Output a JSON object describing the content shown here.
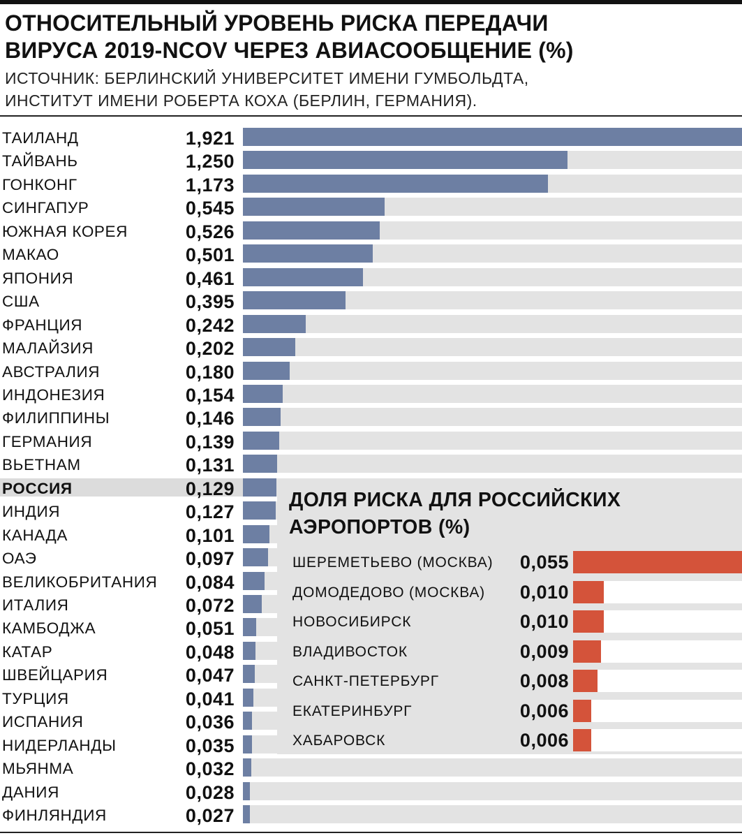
{
  "title": {
    "line1": "ОТНОСИТЕЛЬНЫЙ УРОВЕНЬ РИСКА ПЕРЕДАЧИ",
    "line2": "ВИРУСА 2019-NCOV ЧЕРЕЗ АВИАСООБЩЕНИЕ (%)"
  },
  "source": {
    "line1": "ИСТОЧНИК: БЕРЛИНСКИЙ УНИВЕРСИТЕТ ИМЕНИ ГУМБОЛЬДТА,",
    "line2": "ИНСТИТУТ ИМЕНИ РОБЕРТА КОХА (БЕРЛИН, ГЕРМАНИЯ)."
  },
  "colors": {
    "main_bar": "#6d7fa3",
    "inset_bar": "#d4533a",
    "track": "#e3e3e3",
    "highlight": "#dcdcdc"
  },
  "chart_data": [
    {
      "type": "bar",
      "orientation": "horizontal",
      "title": "ОТНОСИТЕЛЬНЫЙ УРОВЕНЬ РИСКА ПЕРЕДАЧИ ВИРУСА 2019-NCOV ЧЕРЕЗ АВИАСООБЩЕНИЕ (%)",
      "categories": [
        "ТАИЛАНД",
        "ТАЙВАНЬ",
        "ГОНКОНГ",
        "СИНГАПУР",
        "ЮЖНАЯ КОРЕЯ",
        "МАКАО",
        "ЯПОНИЯ",
        "США",
        "ФРАНЦИЯ",
        "МАЛАЙЗИЯ",
        "АВСТРАЛИЯ",
        "ИНДОНЕЗИЯ",
        "ФИЛИППИНЫ",
        "ГЕРМАНИЯ",
        "ВЬЕТНАМ",
        "РОССИЯ",
        "ИНДИЯ",
        "КАНАДА",
        "ОАЭ",
        "ВЕЛИКОБРИТАНИЯ",
        "ИТАЛИЯ",
        "КАМБОДЖА",
        "КАТАР",
        "ШВЕЙЦАРИЯ",
        "ТУРЦИЯ",
        "ИСПАНИЯ",
        "НИДЕРЛАНДЫ",
        "МЬЯНМА",
        "ДАНИЯ",
        "ФИНЛЯНДИЯ"
      ],
      "values": [
        1.921,
        1.25,
        1.173,
        0.545,
        0.526,
        0.501,
        0.461,
        0.395,
        0.242,
        0.202,
        0.18,
        0.154,
        0.146,
        0.139,
        0.131,
        0.129,
        0.127,
        0.101,
        0.097,
        0.084,
        0.072,
        0.051,
        0.048,
        0.047,
        0.041,
        0.036,
        0.035,
        0.032,
        0.028,
        0.027
      ],
      "value_labels": [
        "1,921",
        "1,250",
        "1,173",
        "0,545",
        "0,526",
        "0,501",
        "0,461",
        "0,395",
        "0,242",
        "0,202",
        "0,180",
        "0,154",
        "0,146",
        "0,139",
        "0,131",
        "0,129",
        "0,127",
        "0,101",
        "0,097",
        "0,084",
        "0,072",
        "0,051",
        "0,048",
        "0,047",
        "0,041",
        "0,036",
        "0,035",
        "0,032",
        "0,028",
        "0,027"
      ],
      "highlight": "РОССИЯ",
      "xlim": [
        0,
        1.921
      ]
    },
    {
      "type": "bar",
      "orientation": "horizontal",
      "title": "ДОЛЯ РИСКА ДЛЯ РОССИЙСКИХ АЭРОПОРТОВ (%)",
      "title_lines": [
        "ДОЛЯ РИСКА ДЛЯ РОССИЙСКИХ",
        "АЭРОПОРТОВ (%)"
      ],
      "categories": [
        "ШЕРЕМЕТЬЕВО (МОСКВА)",
        "ДОМОДЕДОВО (МОСКВА)",
        "НОВОСИБИРСК",
        "ВЛАДИВОСТОК",
        "САНКТ-ПЕТЕРБУРГ",
        "ЕКАТЕРИНБУРГ",
        "ХАБАРОВСК"
      ],
      "values": [
        0.055,
        0.01,
        0.01,
        0.009,
        0.008,
        0.006,
        0.006
      ],
      "value_labels": [
        "0,055",
        "0,010",
        "0,010",
        "0,009",
        "0,008",
        "0,006",
        "0,006"
      ],
      "xlim": [
        0,
        0.055
      ]
    }
  ]
}
